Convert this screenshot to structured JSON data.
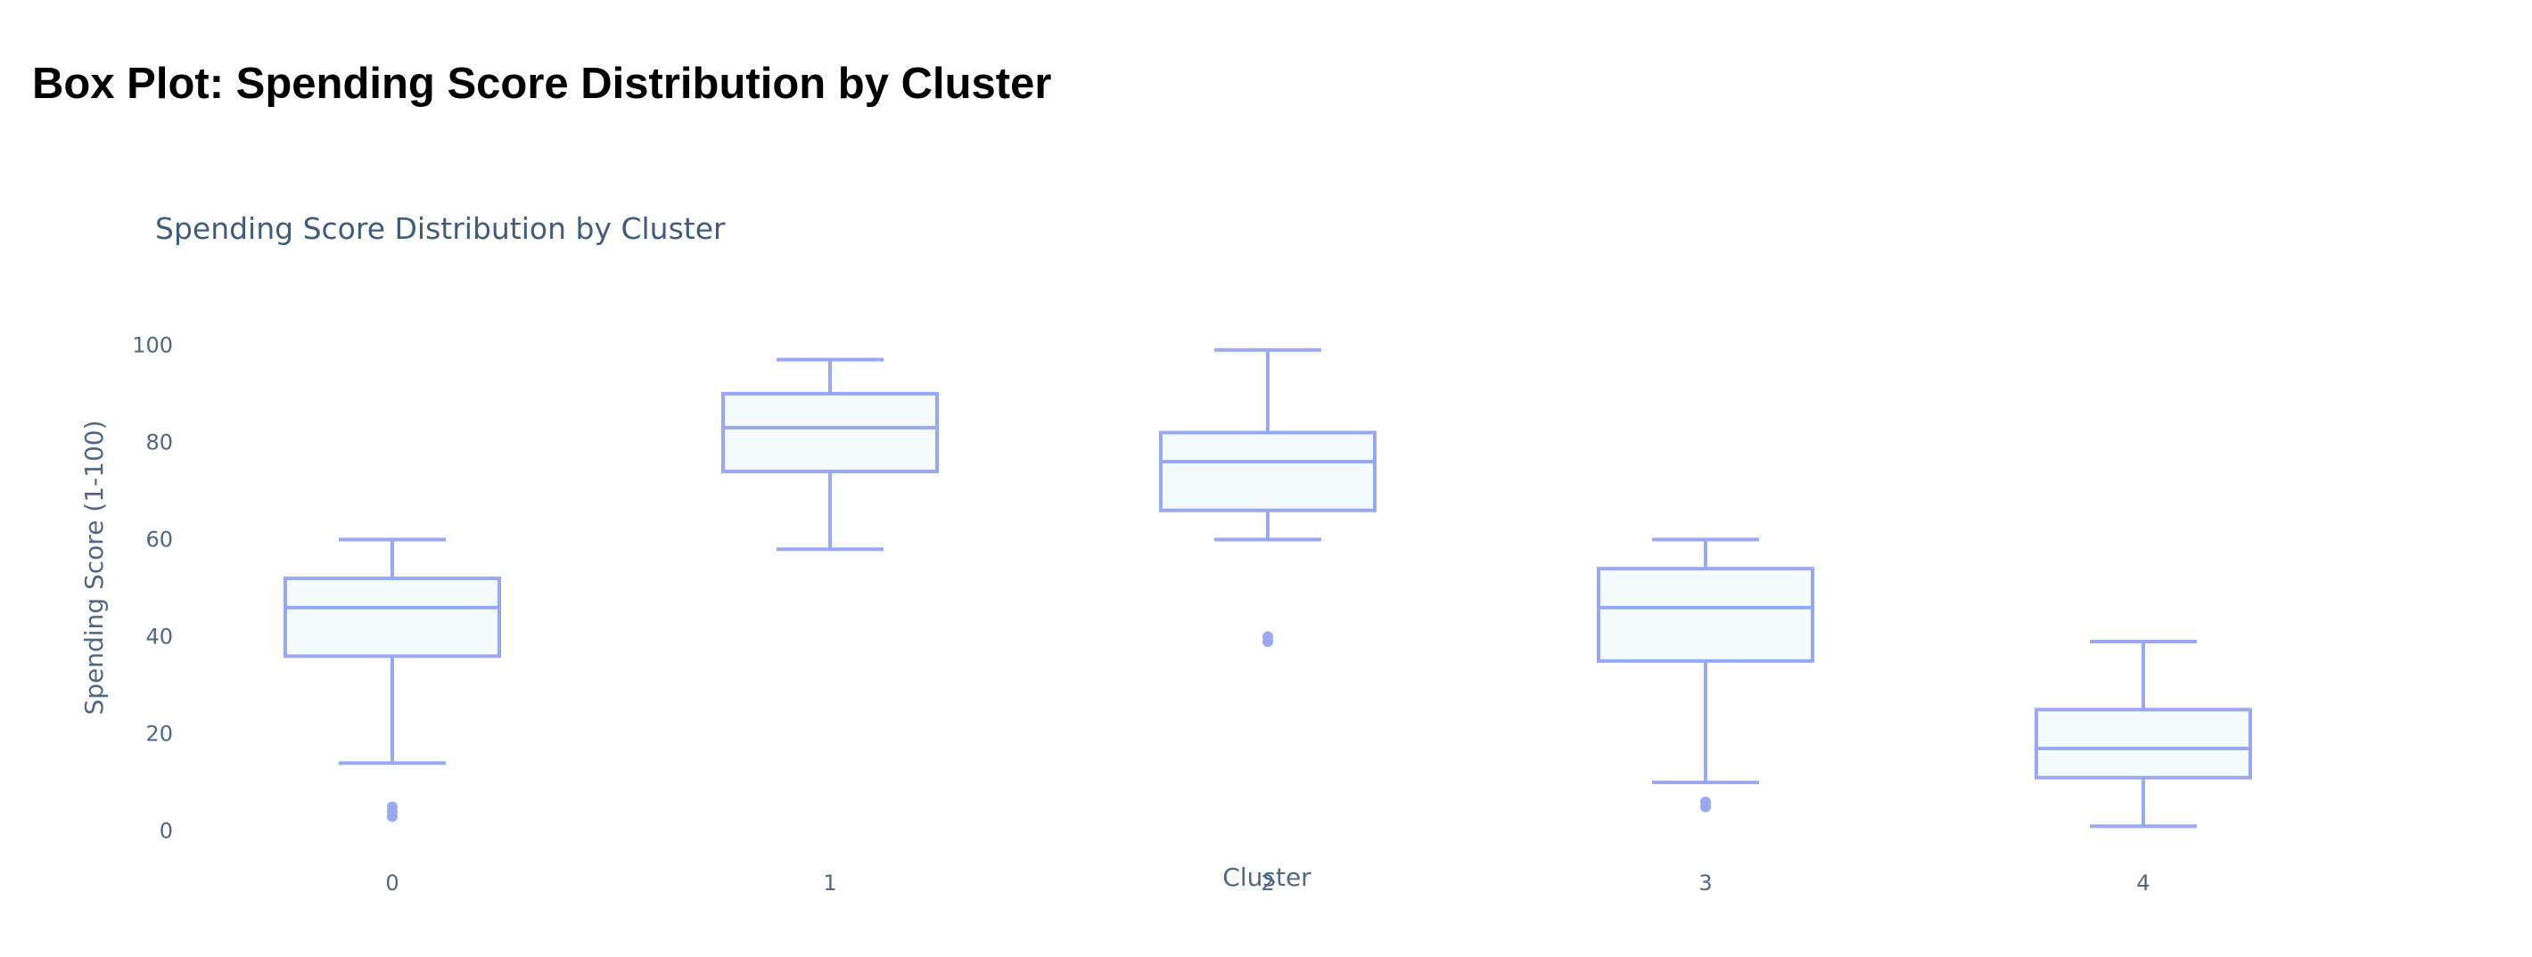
{
  "page": {
    "heading": "Box Plot: Spending Score Distribution by Cluster"
  },
  "colors": {
    "box_line": "#98a8f2",
    "box_fill": "#f4fbfd",
    "text": "#506784",
    "title": "#3f5c80"
  },
  "chart_data": {
    "type": "box",
    "title": "Spending Score Distribution by Cluster",
    "xlabel": "Cluster",
    "ylabel": "Spending Score (1-100)",
    "ylim": [
      -5,
      105
    ],
    "yticks": [
      0,
      20,
      40,
      60,
      80,
      100
    ],
    "grid": false,
    "categories": [
      "0",
      "1",
      "2",
      "3",
      "4"
    ],
    "boxes": [
      {
        "category": "0",
        "min": 14,
        "q1": 36,
        "median": 46,
        "q3": 52,
        "max": 60,
        "outliers": [
          3,
          4,
          5
        ]
      },
      {
        "category": "1",
        "min": 58,
        "q1": 74,
        "median": 83,
        "q3": 90,
        "max": 97,
        "outliers": []
      },
      {
        "category": "2",
        "min": 60,
        "q1": 66,
        "median": 76,
        "q3": 82,
        "max": 99,
        "outliers": [
          39,
          40
        ]
      },
      {
        "category": "3",
        "min": 10,
        "q1": 35,
        "median": 46,
        "q3": 54,
        "max": 60,
        "outliers": [
          5,
          6
        ]
      },
      {
        "category": "4",
        "min": 1,
        "q1": 11,
        "median": 17,
        "q3": 25,
        "max": 39,
        "outliers": []
      }
    ]
  }
}
